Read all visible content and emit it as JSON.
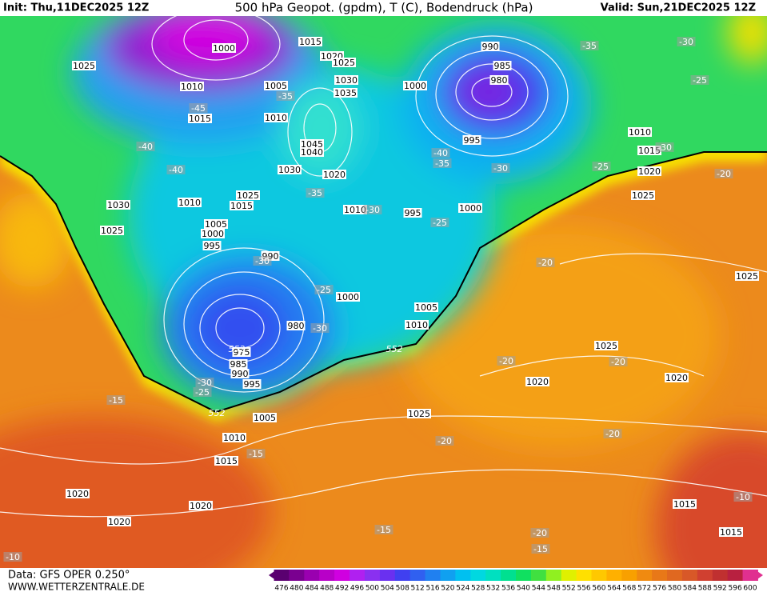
{
  "header": {
    "init": "Init: Thu,11DEC2025 12Z",
    "title": "500 hPa Geopot. (gpdm), T (C), Bodendruck (hPa)",
    "valid": "Valid: Sun,21DEC2025 12Z"
  },
  "footer": {
    "data": "Data: GFS OPER 0.250°",
    "site": "WWW.WETTERZENTRALE.DE"
  },
  "colorbar": {
    "ticks": [
      476,
      480,
      484,
      488,
      492,
      496,
      500,
      504,
      508,
      512,
      516,
      520,
      524,
      528,
      532,
      536,
      540,
      544,
      548,
      552,
      556,
      560,
      564,
      568,
      572,
      576,
      580,
      584,
      588,
      592,
      596,
      600
    ],
    "colors": [
      "#5a0070",
      "#7a0090",
      "#9a00b0",
      "#b800c8",
      "#d000e0",
      "#b020f0",
      "#8a30f0",
      "#6a30f0",
      "#4040f0",
      "#3060f0",
      "#2080f0",
      "#10a0f0",
      "#00c0f0",
      "#00d8e0",
      "#00e0c0",
      "#00e090",
      "#10e060",
      "#40e040",
      "#90f020",
      "#e0f000",
      "#ffe000",
      "#ffc800",
      "#ffb000",
      "#f8a000",
      "#f08a10",
      "#e87818",
      "#e06820",
      "#d85828",
      "#d04030",
      "#c03030",
      "#b82040",
      "#e03090"
    ]
  },
  "contour_552": [
    552,
    552,
    552
  ],
  "isobars": [
    1025,
    1010,
    1015,
    1000,
    1005,
    1015,
    1020,
    1025,
    1030,
    1035,
    1010,
    1045,
    1040,
    1030,
    1020,
    1025,
    1015,
    1010,
    1030,
    1025,
    1005,
    1000,
    995,
    990,
    980,
    975,
    985,
    990,
    995,
    1000,
    1005,
    1010,
    1010,
    995,
    1000,
    1000,
    990,
    985,
    980,
    995,
    1010,
    1015,
    1020,
    1025,
    1025,
    1025,
    1020,
    1020,
    1025,
    1005,
    1010,
    1015,
    1020,
    1020,
    1020,
    1015,
    1015
  ],
  "temperatures": [
    -45,
    -35,
    -40,
    -40,
    -35,
    -30,
    -25,
    -30,
    -25,
    -30,
    -30,
    -25,
    -15,
    -15,
    -35,
    -30,
    -25,
    -30,
    -25,
    -20,
    -40,
    -35,
    -30,
    -20,
    -20,
    -20,
    -20,
    -20,
    -15,
    -20,
    -15,
    -10,
    -10
  ]
}
